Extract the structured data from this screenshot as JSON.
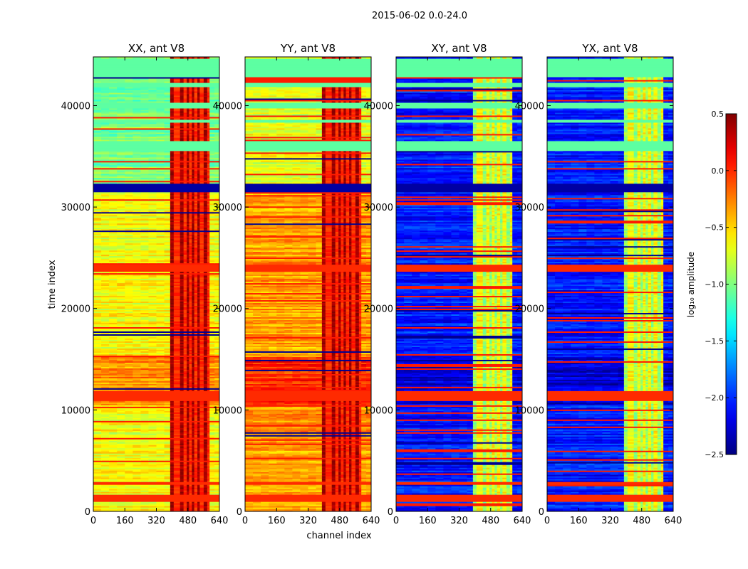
{
  "chart_data": {
    "type": "heatmap",
    "suptitle": "2015-06-02 0.0-24.0",
    "xlabel": "channel index",
    "ylabel": "time index",
    "xlim": [
      0,
      640
    ],
    "ylim": [
      0,
      44800
    ],
    "xticks": [
      0,
      160,
      320,
      480,
      640
    ],
    "yticks": [
      0,
      10000,
      20000,
      30000,
      40000
    ],
    "panels": [
      {
        "title": "XX, ant V8",
        "kind": "auto",
        "base_level": -0.65
      },
      {
        "title": "YY, ant V8",
        "kind": "auto",
        "base_level": -0.35
      },
      {
        "title": "XY, ant V8",
        "kind": "cross",
        "base_level": -2.05
      },
      {
        "title": "YX, ant V8",
        "kind": "cross",
        "base_level": -2.05
      }
    ],
    "colorbar": {
      "label": "log₁₀ amplitude",
      "min": -2.5,
      "max": 0.5,
      "ticks": [
        0.5,
        0.0,
        -0.5,
        -1.0,
        -1.5,
        -2.0,
        -2.5
      ],
      "tick_labels": [
        "0.5",
        "0.0",
        "−0.5",
        "−1.0",
        "−1.5",
        "−2.0",
        "−2.5"
      ],
      "colormap": "jet"
    },
    "flagged_time_blocks": [
      {
        "start": 35500,
        "end": 36500,
        "level": -1.1
      },
      {
        "start": 38300,
        "end": 38700,
        "level": -1.1
      },
      {
        "start": 39700,
        "end": 40300,
        "level": -1.1
      },
      {
        "start": 41800,
        "end": 42300,
        "level": -1.1
      },
      {
        "start": 42900,
        "end": 44600,
        "level": -1.1
      }
    ],
    "strong_time_bands": [
      {
        "start": 23700,
        "end": 24400,
        "level": 0.0
      },
      {
        "start": 10900,
        "end": 11900,
        "level": 0.0
      },
      {
        "start": 31500,
        "end": 32300,
        "level": -2.4
      },
      {
        "start": 1000,
        "end": 1700,
        "level": 0.0
      },
      {
        "start": 2700,
        "end": 3000,
        "level": 0.0
      }
    ],
    "rfi_channel_range": [
      390,
      590
    ]
  }
}
